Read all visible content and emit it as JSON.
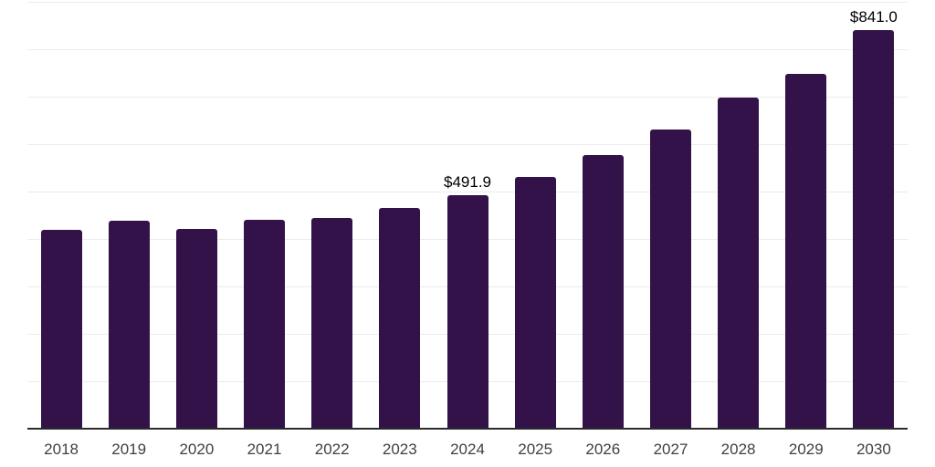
{
  "chart_data": {
    "type": "bar",
    "title": "",
    "xlabel": "",
    "ylabel": "",
    "categories": [
      "2018",
      "2019",
      "2020",
      "2021",
      "2022",
      "2023",
      "2024",
      "2025",
      "2026",
      "2027",
      "2028",
      "2029",
      "2030"
    ],
    "values": [
      418.9,
      437.8,
      421.7,
      440.2,
      444.6,
      464.9,
      491.9,
      530.4,
      576.2,
      631.6,
      698.0,
      748.5,
      841.0
    ],
    "data_labels": {
      "2024": "$491.9",
      "2030": "$841.0"
    },
    "value_unit_prefix": "$",
    "ylim": [
      0,
      900
    ],
    "gridline_step": 100,
    "grid": "horizontal",
    "legend_position": "none",
    "colors": {
      "bar": "#33124A",
      "gridline": "#ebebeb",
      "axis_line": "#2b2b2b",
      "tick_label": "#3f3f3f",
      "data_label": "#000000",
      "background": "#ffffff"
    }
  }
}
